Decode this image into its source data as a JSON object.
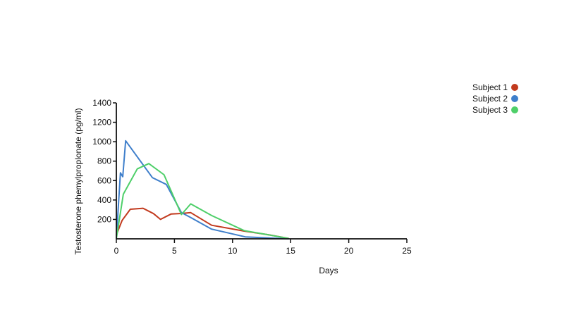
{
  "chart_data": {
    "type": "line",
    "title": "",
    "xlabel": "Days",
    "ylabel": "Testosterone phemylproplonate (pg/ml)",
    "xlim": [
      0,
      25
    ],
    "ylim": [
      0,
      1400
    ],
    "xticks": [
      0,
      5,
      10,
      15,
      20,
      25
    ],
    "yticks": [
      200,
      400,
      600,
      800,
      1000,
      1200,
      1400
    ],
    "grid": false,
    "legend_position": "top-right",
    "series": [
      {
        "name": "Subject 1",
        "color": "#c23a1e",
        "x": [
          0,
          0.5,
          1.2,
          2.3,
          3.2,
          3.8,
          4.7,
          5.7,
          6.4,
          8.2,
          11.0,
          13.2,
          14.8
        ],
        "y": [
          40,
          190,
          305,
          315,
          260,
          200,
          255,
          262,
          270,
          140,
          80,
          40,
          5
        ]
      },
      {
        "name": "Subject 2",
        "color": "#3f7fcb",
        "x": [
          0,
          0.35,
          0.55,
          0.8,
          3.1,
          4.3,
          5.6,
          6.4,
          8.2,
          11.1,
          14.8
        ],
        "y": [
          0,
          680,
          640,
          1010,
          630,
          560,
          270,
          220,
          100,
          20,
          0
        ]
      },
      {
        "name": "Subject 3",
        "color": "#4ecf69",
        "x": [
          0,
          0.6,
          1.8,
          2.8,
          4.1,
          5.6,
          6.4,
          8.2,
          11.0,
          14.8
        ],
        "y": [
          0,
          460,
          720,
          775,
          660,
          250,
          360,
          240,
          85,
          5
        ]
      }
    ]
  }
}
